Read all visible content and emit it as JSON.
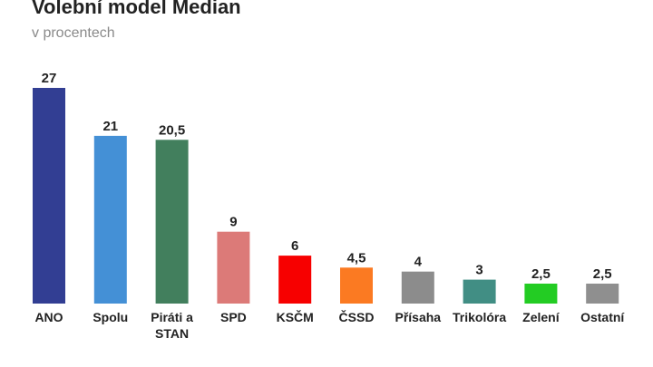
{
  "header": {
    "title": "Volební model Median",
    "subtitle": "v procentech"
  },
  "chart_data": {
    "type": "bar",
    "title": "Volební model Median",
    "subtitle": "v procentech",
    "categories": [
      "ANO",
      "Spolu",
      "Piráti a STAN",
      "SPD",
      "KSČM",
      "ČSSD",
      "Přísaha",
      "Trikolóra",
      "Zelení",
      "Ostatní"
    ],
    "category_lines": [
      [
        "ANO"
      ],
      [
        "Spolu"
      ],
      [
        "Piráti a",
        "STAN"
      ],
      [
        "SPD"
      ],
      [
        "KSČM"
      ],
      [
        "ČSSD"
      ],
      [
        "Přísaha"
      ],
      [
        "Trikolóra"
      ],
      [
        "Zelení"
      ],
      [
        "Ostatní"
      ]
    ],
    "values": [
      27,
      21,
      20.5,
      9,
      6,
      4.5,
      4,
      3,
      2.5,
      2.5
    ],
    "value_labels": [
      "27",
      "21",
      "20,5",
      "9",
      "6",
      "4,5",
      "4",
      "3",
      "2,5",
      "2,5"
    ],
    "colors": [
      "#323e93",
      "#4490d6",
      "#427f5d",
      "#dc7a78",
      "#f70000",
      "#fb7a22",
      "#8c8c8c",
      "#418e84",
      "#23cc23",
      "#8f8f8f"
    ],
    "ylim": [
      0,
      27
    ],
    "grid": false,
    "legend": "none",
    "xlabel": "",
    "ylabel": ""
  }
}
